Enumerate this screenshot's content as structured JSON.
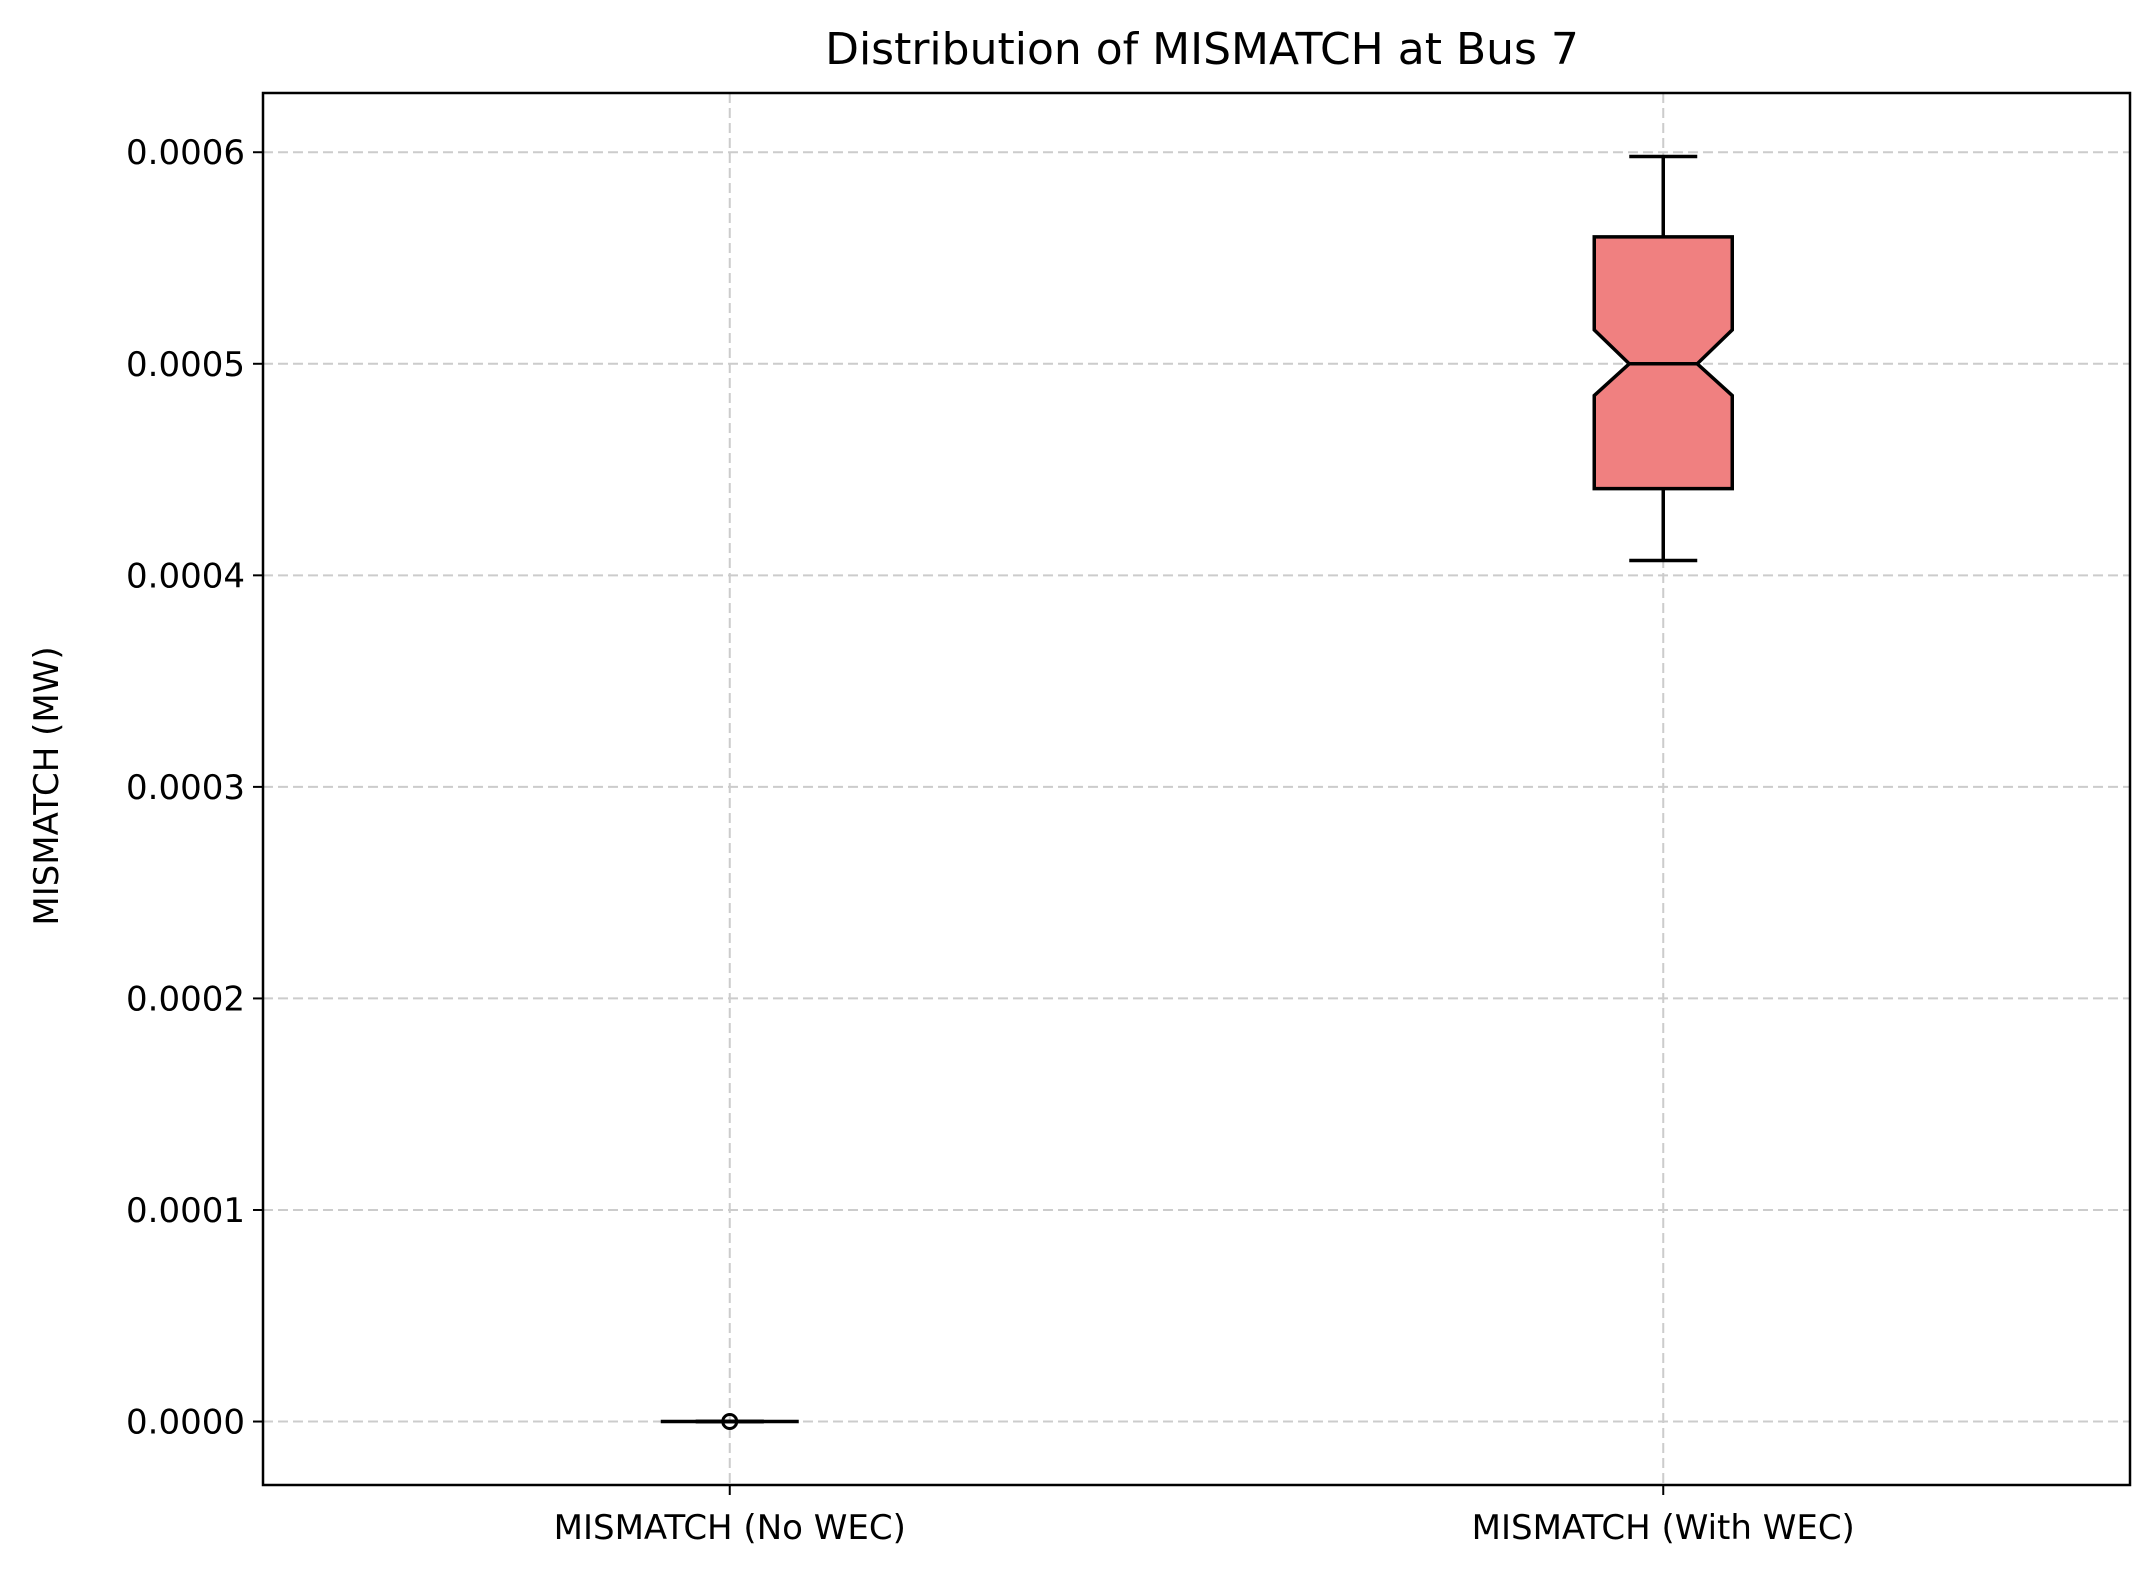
{
  "chart_data": {
    "type": "boxplot",
    "title": "Distribution of MISMATCH at Bus 7",
    "xlabel": "",
    "ylabel": "MISMATCH (MW)",
    "categories": [
      "MISMATCH (No WEC)",
      "MISMATCH (With WEC)"
    ],
    "ylim": [
      -3e-05,
      0.000628
    ],
    "yticks": [
      0.0,
      0.0001,
      0.0002,
      0.0003,
      0.0004,
      0.0005,
      0.0006
    ],
    "ytick_labels": [
      "0.0000",
      "0.0001",
      "0.0002",
      "0.0003",
      "0.0004",
      "0.0005",
      "0.0006"
    ],
    "grid": true,
    "notched": true,
    "boxes": [
      {
        "category": "MISMATCH (No WEC)",
        "whisker_low": 0.0,
        "q1": 0.0,
        "median": 0.0,
        "q3": 0.0,
        "whisker_high": 0.0,
        "notch_low": 0.0,
        "notch_high": 0.0,
        "fliers": [
          0.0
        ],
        "fill": "#f08080"
      },
      {
        "category": "MISMATCH (With WEC)",
        "whisker_low": 0.000407,
        "q1": 0.000441,
        "median": 0.0005,
        "q3": 0.00056,
        "whisker_high": 0.000598,
        "notch_low": 0.000485,
        "notch_high": 0.000516,
        "fliers": [],
        "fill": "#f08080"
      }
    ],
    "colors": {
      "box_fill": "#f08080",
      "line": "#000000",
      "grid": "#cccccc"
    }
  }
}
